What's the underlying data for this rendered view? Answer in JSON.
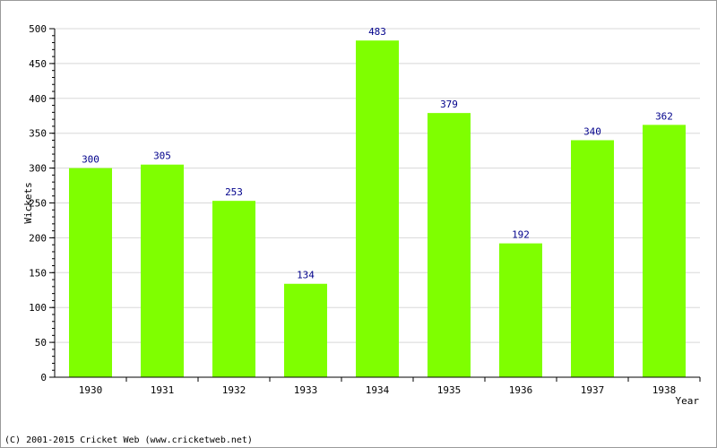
{
  "chart_data": {
    "type": "bar",
    "categories": [
      "1930",
      "1931",
      "1932",
      "1933",
      "1934",
      "1935",
      "1936",
      "1937",
      "1938"
    ],
    "values": [
      300,
      305,
      253,
      134,
      483,
      379,
      192,
      340,
      362
    ],
    "title": "",
    "xlabel": "Year",
    "ylabel": "Wickets",
    "ylim": [
      0,
      500
    ],
    "yticks": [
      0,
      50,
      100,
      150,
      200,
      250,
      300,
      350,
      400,
      450,
      500
    ],
    "grid": true,
    "bar_color": "#7fff00",
    "value_label_color": "#00008b",
    "gridline_color": "#d8d8d8"
  },
  "footer": {
    "copyright": "(C) 2001-2015 Cricket Web (www.cricketweb.net)"
  }
}
